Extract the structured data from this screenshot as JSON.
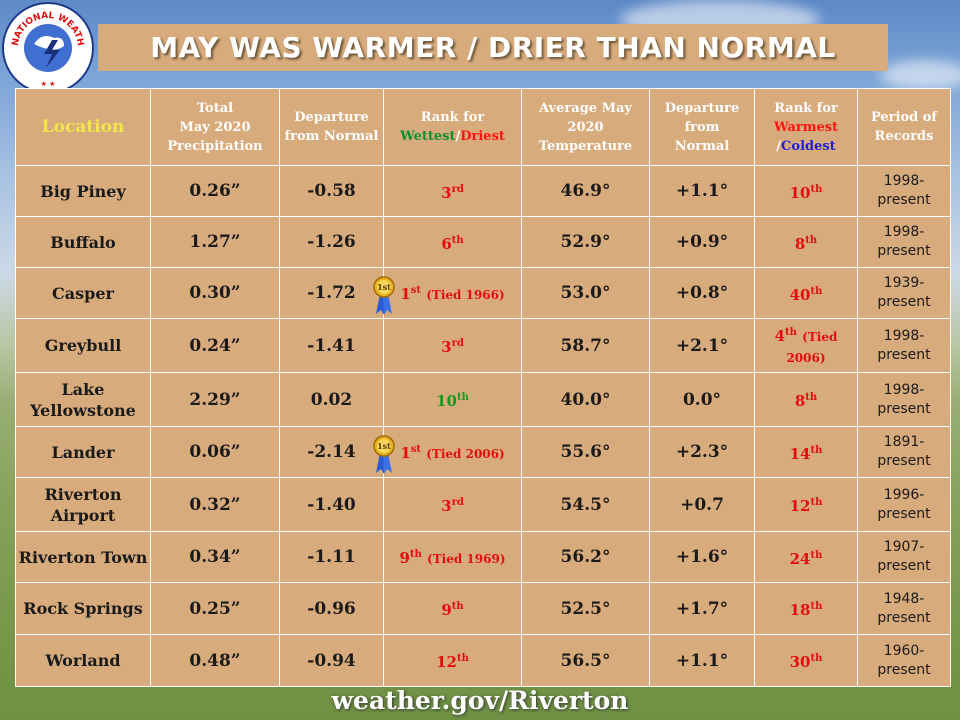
{
  "title": "MAY WAS WARMER / DRIER THAN NORMAL",
  "logo_text": "NATIONAL WEATHER SERVICE",
  "headers": {
    "location": "Location",
    "precip": [
      "Total",
      "May 2020",
      "Precipitation"
    ],
    "precip_dep": [
      "Departure",
      "from Normal"
    ],
    "rank_wet_prefix": "Rank for",
    "rank_wet_wettest": "Wettest",
    "rank_wet_sep": "/",
    "rank_wet_driest": "Driest",
    "avg_temp": [
      "Average May",
      "2020",
      "Temperature"
    ],
    "temp_dep": [
      "Departure",
      "from",
      "Normal"
    ],
    "rank_warm_prefix": "Rank for",
    "rank_warm_warmest": "Warmest",
    "rank_warm_sep": "/",
    "rank_warm_coldest": "Coldest",
    "period": [
      "Period of",
      "Records"
    ]
  },
  "rows": [
    {
      "loc": [
        "Big Piney"
      ],
      "precip": "0.26”",
      "dep": "-0.58",
      "wrank": "3",
      "wsup": "rd",
      "wtie": "",
      "wcolor": "red",
      "ribbon": false,
      "temp": "46.9°",
      "tdep": "+1.1°",
      "trank": "10",
      "tsup": "th",
      "ttie": "",
      "por": [
        "1998-",
        "present"
      ]
    },
    {
      "loc": [
        "Buffalo"
      ],
      "precip": "1.27”",
      "dep": "-1.26",
      "wrank": "6",
      "wsup": "th",
      "wtie": "",
      "wcolor": "red",
      "ribbon": false,
      "temp": "52.9°",
      "tdep": "+0.9°",
      "trank": "8",
      "tsup": "th",
      "ttie": "",
      "por": [
        "1998-",
        "present"
      ]
    },
    {
      "loc": [
        "Casper"
      ],
      "precip": "0.30”",
      "dep": "-1.72",
      "wrank": "1",
      "wsup": "st",
      "wtie": "(Tied 1966)",
      "wcolor": "red",
      "ribbon": true,
      "temp": "53.0°",
      "tdep": "+0.8°",
      "trank": "40",
      "tsup": "th",
      "ttie": "",
      "por": [
        "1939-",
        "present"
      ]
    },
    {
      "loc": [
        "Greybull"
      ],
      "precip": "0.24”",
      "dep": "-1.41",
      "wrank": "3",
      "wsup": "rd",
      "wtie": "",
      "wcolor": "red",
      "ribbon": false,
      "temp": "58.7°",
      "tdep": "+2.1°",
      "trank": "4",
      "tsup": "th",
      "ttie": "(Tied 2006)",
      "por": [
        "1998-",
        "present"
      ]
    },
    {
      "loc": [
        "Lake",
        "Yellowstone"
      ],
      "precip": "2.29”",
      "dep": "0.02",
      "wrank": "10",
      "wsup": "th",
      "wtie": "",
      "wcolor": "green",
      "ribbon": false,
      "temp": "40.0°",
      "tdep": "0.0°",
      "trank": "8",
      "tsup": "th",
      "ttie": "",
      "por": [
        "1998-",
        "present"
      ]
    },
    {
      "loc": [
        "Lander"
      ],
      "precip": "0.06”",
      "dep": "-2.14",
      "wrank": "1",
      "wsup": "st",
      "wtie": "(Tied 2006)",
      "wcolor": "red",
      "ribbon": true,
      "temp": "55.6°",
      "tdep": "+2.3°",
      "trank": "14",
      "tsup": "th",
      "ttie": "",
      "por": [
        "1891-",
        "present"
      ]
    },
    {
      "loc": [
        "Riverton",
        "Airport"
      ],
      "precip": "0.32”",
      "dep": "-1.40",
      "wrank": "3",
      "wsup": "rd",
      "wtie": "",
      "wcolor": "red",
      "ribbon": false,
      "temp": "54.5°",
      "tdep": "+0.7",
      "trank": "12",
      "tsup": "th",
      "ttie": "",
      "por": [
        "1996-",
        "present"
      ]
    },
    {
      "loc": [
        "Riverton Town"
      ],
      "precip": "0.34”",
      "dep": "-1.11",
      "wrank": "9",
      "wsup": "th",
      "wtie": "(Tied 1969)",
      "wcolor": "red",
      "ribbon": false,
      "temp": "56.2°",
      "tdep": "+1.6°",
      "trank": "24",
      "tsup": "th",
      "ttie": "",
      "por": [
        "1907-",
        "present"
      ]
    },
    {
      "loc": [
        "Rock Springs"
      ],
      "precip": "0.25”",
      "dep": "-0.96",
      "wrank": "9",
      "wsup": "th",
      "wtie": "",
      "wcolor": "red",
      "ribbon": false,
      "temp": "52.5°",
      "tdep": "+1.7°",
      "trank": "18",
      "tsup": "th",
      "ttie": "",
      "por": [
        "1948-",
        "present"
      ]
    },
    {
      "loc": [
        "Worland"
      ],
      "precip": "0.48”",
      "dep": "-0.94",
      "wrank": "12",
      "wsup": "th",
      "wtie": "",
      "wcolor": "red",
      "ribbon": false,
      "temp": "56.5°",
      "tdep": "+1.1°",
      "trank": "30",
      "tsup": "th",
      "ttie": "",
      "por": [
        "1960-",
        "present"
      ]
    }
  ],
  "ribbon_text": "1st",
  "footer": "weather.gov/Riverton"
}
